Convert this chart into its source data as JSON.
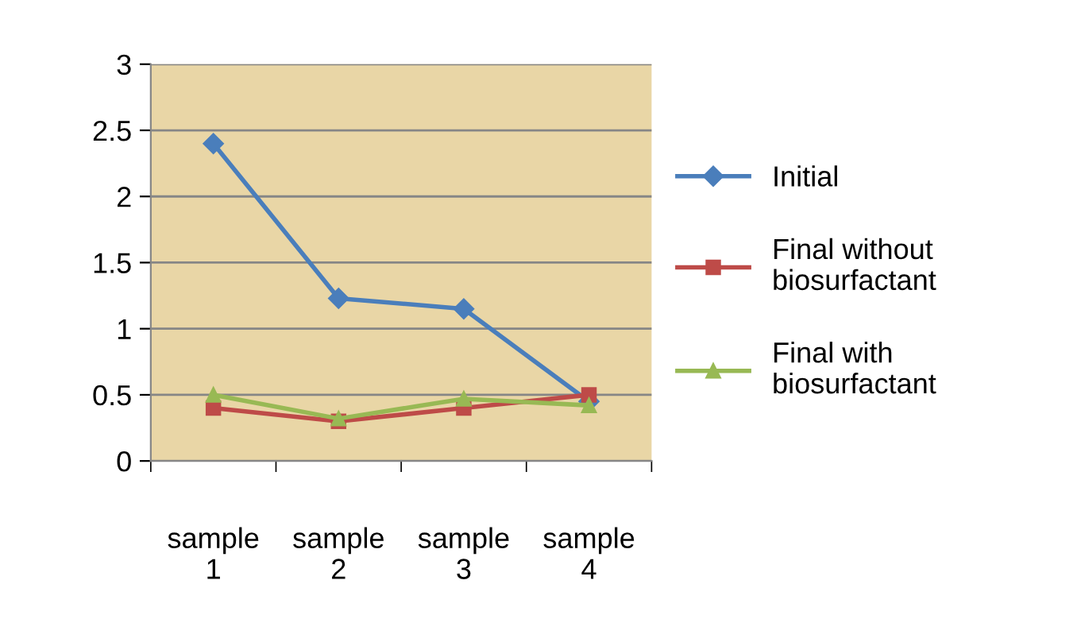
{
  "chart_data": {
    "type": "line",
    "categories": [
      "sample\n1",
      "sample\n2",
      "sample\n3",
      "sample\n4"
    ],
    "series": [
      {
        "name": "Initial",
        "color": "#4a7ebb",
        "marker": "diamond",
        "values": [
          2.4,
          1.23,
          1.15,
          0.45
        ]
      },
      {
        "name": "Final without\nbiosurfactant",
        "color": "#be4b48",
        "marker": "square",
        "values": [
          0.4,
          0.3,
          0.4,
          0.5
        ]
      },
      {
        "name": "Final with\nbiosurfactant",
        "color": "#98b954",
        "marker": "triangle",
        "values": [
          0.5,
          0.32,
          0.47,
          0.42
        ]
      }
    ],
    "ylim": [
      0,
      3
    ],
    "yticks": [
      0,
      0.5,
      1,
      1.5,
      2,
      2.5,
      3
    ],
    "grid": "y",
    "legend": "right",
    "line_style": "solid"
  }
}
